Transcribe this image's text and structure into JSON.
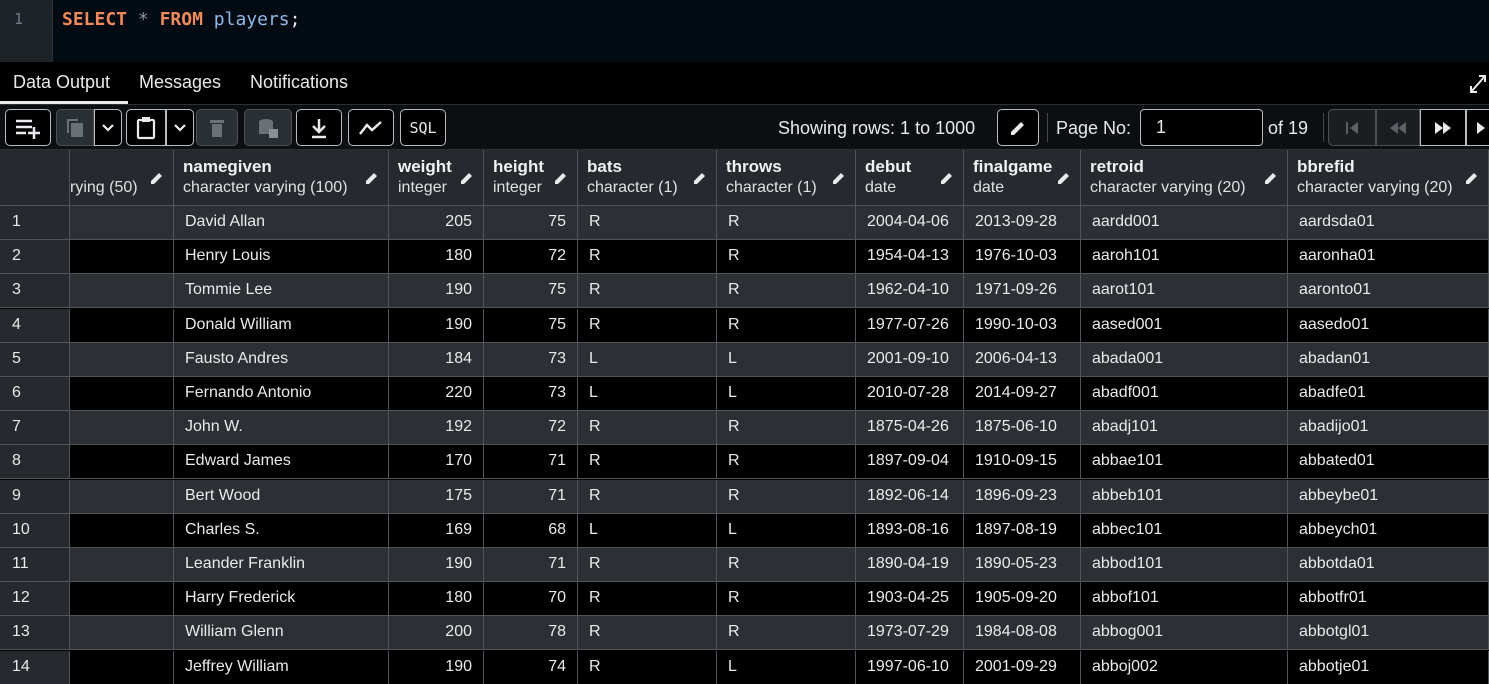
{
  "editor": {
    "line_number": "1",
    "tokens": {
      "select": "SELECT",
      "star": "*",
      "from": "FROM",
      "table": "players",
      "semicolon": ";"
    }
  },
  "tabs": [
    "Data Output",
    "Messages",
    "Notifications"
  ],
  "toolbar": {
    "showing_rows": "Showing rows: 1 to 1000",
    "page_label": "Page No:",
    "page_value": "1",
    "of_pages": "of 19",
    "sql_label": "SQL"
  },
  "columns": [
    {
      "name": "",
      "type": "rying (50)"
    },
    {
      "name": "namegiven",
      "type": "character varying (100)"
    },
    {
      "name": "weight",
      "type": "integer"
    },
    {
      "name": "height",
      "type": "integer"
    },
    {
      "name": "bats",
      "type": "character (1)"
    },
    {
      "name": "throws",
      "type": "character (1)"
    },
    {
      "name": "debut",
      "type": "date"
    },
    {
      "name": "finalgame",
      "type": "date"
    },
    {
      "name": "retroid",
      "type": "character varying (20)"
    },
    {
      "name": "bbrefid",
      "type": "character varying (20)"
    }
  ],
  "rows": [
    [
      "1",
      "",
      "David Allan",
      "205",
      "75",
      "R",
      "R",
      "2004-04-06",
      "2013-09-28",
      "aardd001",
      "aardsda01"
    ],
    [
      "2",
      "",
      "Henry Louis",
      "180",
      "72",
      "R",
      "R",
      "1954-04-13",
      "1976-10-03",
      "aaroh101",
      "aaronha01"
    ],
    [
      "3",
      "",
      "Tommie Lee",
      "190",
      "75",
      "R",
      "R",
      "1962-04-10",
      "1971-09-26",
      "aarot101",
      "aaronto01"
    ],
    [
      "4",
      "",
      "Donald William",
      "190",
      "75",
      "R",
      "R",
      "1977-07-26",
      "1990-10-03",
      "aased001",
      "aasedo01"
    ],
    [
      "5",
      "",
      "Fausto Andres",
      "184",
      "73",
      "L",
      "L",
      "2001-09-10",
      "2006-04-13",
      "abada001",
      "abadan01"
    ],
    [
      "6",
      "",
      "Fernando Antonio",
      "220",
      "73",
      "L",
      "L",
      "2010-07-28",
      "2014-09-27",
      "abadf001",
      "abadfe01"
    ],
    [
      "7",
      "",
      "John W.",
      "192",
      "72",
      "R",
      "R",
      "1875-04-26",
      "1875-06-10",
      "abadj101",
      "abadijo01"
    ],
    [
      "8",
      "",
      "Edward James",
      "170",
      "71",
      "R",
      "R",
      "1897-09-04",
      "1910-09-15",
      "abbae101",
      "abbated01"
    ],
    [
      "9",
      "",
      "Bert Wood",
      "175",
      "71",
      "R",
      "R",
      "1892-06-14",
      "1896-09-23",
      "abbeb101",
      "abbeybe01"
    ],
    [
      "10",
      "",
      "Charles S.",
      "169",
      "68",
      "L",
      "L",
      "1893-08-16",
      "1897-08-19",
      "abbec101",
      "abbeych01"
    ],
    [
      "11",
      "",
      "Leander Franklin",
      "190",
      "71",
      "R",
      "R",
      "1890-04-19",
      "1890-05-23",
      "abbod101",
      "abbotda01"
    ],
    [
      "12",
      "",
      "Harry Frederick",
      "180",
      "70",
      "R",
      "R",
      "1903-04-25",
      "1905-09-20",
      "abbof101",
      "abbotfr01"
    ],
    [
      "13",
      "",
      "William Glenn",
      "200",
      "78",
      "R",
      "R",
      "1973-07-29",
      "1984-08-08",
      "abbog001",
      "abbotgl01"
    ],
    [
      "14",
      "",
      "Jeffrey William",
      "190",
      "74",
      "R",
      "L",
      "1997-06-10",
      "2001-09-29",
      "abboj002",
      "abbotje01"
    ]
  ]
}
